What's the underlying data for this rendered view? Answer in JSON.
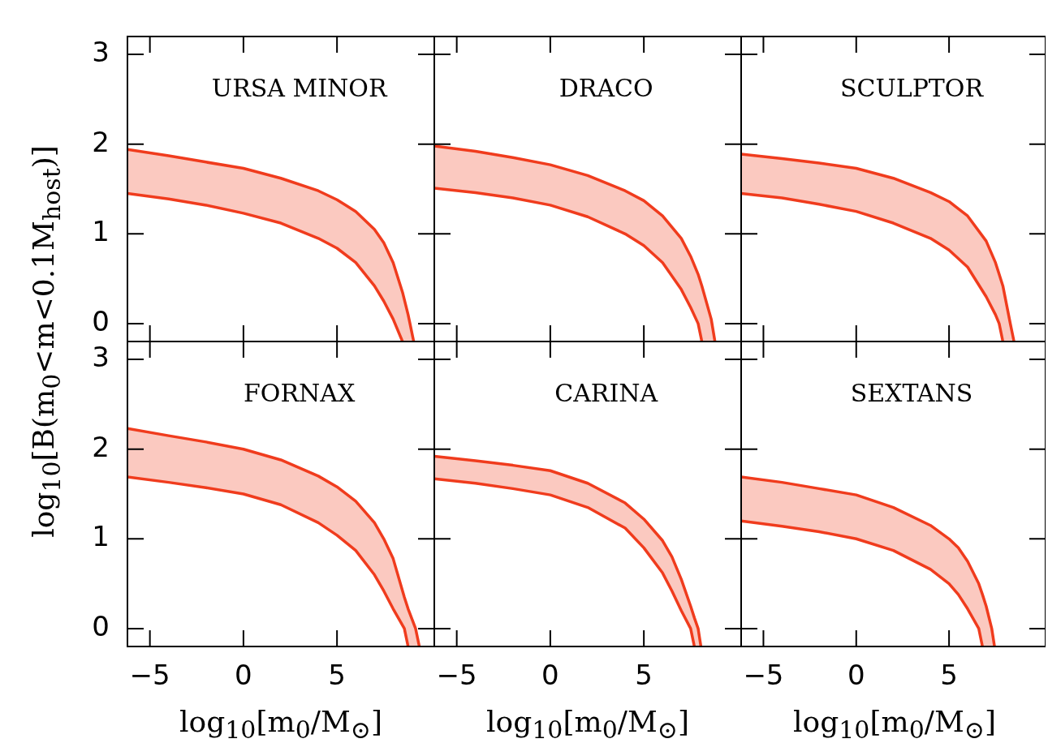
{
  "chart_data": [
    {
      "type": "line",
      "title": "URSA MINOR",
      "ylabel": "log$_{10}$[B(m$_{0}$<m<0.1M$_{host}$)]",
      "xlim": [
        -6.2,
        10.2
      ],
      "ylim": [
        -0.2,
        3.2
      ],
      "xticks": [
        -5,
        0,
        5
      ],
      "yticks": [
        0,
        1,
        2,
        3
      ],
      "tick_labels": "y",
      "x": [
        -6.2,
        -4,
        -2,
        0,
        2,
        4,
        5,
        6,
        7,
        7.5,
        8,
        8.5,
        8.8,
        9.1
      ],
      "series": [
        {
          "color": "#f03c1e",
          "values": [
            1.94,
            1.87,
            1.8,
            1.73,
            1.62,
            1.48,
            1.38,
            1.25,
            1.05,
            0.9,
            0.68,
            0.35,
            0.1,
            -0.2
          ],
          "upper": [
            1.94,
            1.87,
            1.8,
            1.73,
            1.62,
            1.48,
            1.38,
            1.25,
            1.05,
            0.9,
            0.68,
            0.35,
            0.1,
            -0.2
          ],
          "lower": [
            1.45,
            1.39,
            1.32,
            1.23,
            1.12,
            0.95,
            0.84,
            0.68,
            0.42,
            0.25,
            0.05,
            -0.2,
            -0.2,
            -0.2
          ]
        },
        {
          "color": "#f03c1e",
          "values": [
            1.45,
            1.39,
            1.32,
            1.23,
            1.12,
            0.95,
            0.84,
            0.68,
            0.42,
            0.25,
            0.05,
            -0.2,
            null,
            null
          ]
        }
      ]
    },
    {
      "type": "line",
      "title": "DRACO",
      "xlim": [
        -6.2,
        10.2
      ],
      "ylim": [
        -0.2,
        3.2
      ],
      "xticks": [
        -5,
        0,
        5
      ],
      "yticks": [
        0,
        1,
        2,
        3
      ],
      "tick_labels": false,
      "x": [
        -6.2,
        -4,
        -2,
        0,
        2,
        4,
        5,
        6,
        7,
        7.5,
        7.9,
        8.1,
        8.6,
        8.8
      ],
      "series": [
        {
          "color": "#f03c1e",
          "values": [
            1.98,
            1.92,
            1.85,
            1.77,
            1.65,
            1.48,
            1.37,
            1.2,
            0.95,
            0.75,
            0.55,
            0.42,
            0.05,
            -0.2
          ],
          "upper": [
            1.98,
            1.92,
            1.85,
            1.77,
            1.65,
            1.48,
            1.37,
            1.2,
            0.95,
            0.75,
            0.55,
            0.42,
            0.05,
            -0.2
          ],
          "lower": [
            1.51,
            1.46,
            1.4,
            1.32,
            1.19,
            1.0,
            0.87,
            0.68,
            0.38,
            0.18,
            0,
            -0.2,
            -0.2,
            -0.2
          ]
        },
        {
          "color": "#f03c1e",
          "values": [
            1.51,
            1.46,
            1.4,
            1.32,
            1.19,
            1.0,
            0.87,
            0.68,
            0.38,
            0.18,
            0,
            -0.2,
            null,
            null
          ]
        }
      ]
    },
    {
      "type": "line",
      "title": "SCULPTOR",
      "xlim": [
        -6.2,
        10.2
      ],
      "ylim": [
        -0.2,
        3.2
      ],
      "xticks": [
        -5,
        0,
        5
      ],
      "yticks": [
        0,
        1,
        2,
        3
      ],
      "tick_labels": false,
      "x": [
        -6.2,
        -4,
        -2,
        0,
        2,
        4,
        5,
        6,
        7,
        7.5,
        7.7,
        7.9,
        8.3,
        8.5
      ],
      "series": [
        {
          "color": "#f03c1e",
          "values": [
            1.89,
            1.84,
            1.79,
            1.73,
            1.62,
            1.46,
            1.36,
            1.2,
            0.92,
            0.68,
            0.55,
            0.42,
            0,
            -0.2
          ],
          "upper": [
            1.89,
            1.84,
            1.79,
            1.73,
            1.62,
            1.46,
            1.36,
            1.2,
            0.92,
            0.68,
            0.55,
            0.42,
            0,
            -0.2
          ],
          "lower": [
            1.45,
            1.4,
            1.33,
            1.25,
            1.12,
            0.95,
            0.82,
            0.63,
            0.3,
            0.1,
            0,
            -0.2,
            -0.2,
            -0.2
          ]
        },
        {
          "color": "#f03c1e",
          "values": [
            1.45,
            1.4,
            1.33,
            1.25,
            1.12,
            0.95,
            0.82,
            0.63,
            0.3,
            0.1,
            0,
            -0.2,
            null,
            null
          ]
        }
      ]
    },
    {
      "type": "line",
      "title": "FORNAX",
      "xlabel": "log$_{10}$[m$_{0}$/M$_{⊙}$]",
      "xlim": [
        -6.2,
        10.2
      ],
      "ylim": [
        -0.2,
        3.2
      ],
      "xticks": [
        -5,
        0,
        5
      ],
      "yticks": [
        0,
        1,
        2,
        3
      ],
      "x": [
        -6.2,
        -4,
        -2,
        0,
        2,
        4,
        5,
        6,
        7,
        7.5,
        8,
        8.6,
        8.8,
        9.2,
        9.4
      ],
      "series": [
        {
          "color": "#f03c1e",
          "values": [
            2.23,
            2.15,
            2.08,
            2.0,
            1.88,
            1.7,
            1.58,
            1.42,
            1.18,
            1.0,
            0.78,
            0.35,
            0.22,
            0,
            -0.2
          ],
          "upper": [
            2.23,
            2.15,
            2.08,
            2.0,
            1.88,
            1.7,
            1.58,
            1.42,
            1.18,
            1.0,
            0.78,
            0.35,
            0.22,
            0,
            -0.2
          ],
          "lower": [
            1.69,
            1.63,
            1.57,
            1.5,
            1.38,
            1.18,
            1.04,
            0.87,
            0.6,
            0.42,
            0.22,
            0,
            -0.2,
            -0.2,
            -0.2
          ]
        },
        {
          "color": "#f03c1e",
          "values": [
            1.69,
            1.63,
            1.57,
            1.5,
            1.38,
            1.18,
            1.04,
            0.87,
            0.6,
            0.42,
            0.22,
            0,
            -0.2,
            null,
            null
          ]
        }
      ]
    },
    {
      "type": "line",
      "title": "CARINA",
      "xlabel": "log$_{10}$[m$_{0}$/M$_{⊙}$]",
      "xlim": [
        -6.2,
        10.2
      ],
      "ylim": [
        -0.2,
        3.2
      ],
      "xticks": [
        -5,
        0,
        5
      ],
      "yticks": [
        0,
        1,
        2,
        3
      ],
      "tick_labels": "x",
      "x": [
        -6.2,
        -4,
        -2,
        0,
        2,
        4,
        5,
        6,
        6.5,
        7,
        7.5,
        7.7,
        7.9,
        8.05
      ],
      "series": [
        {
          "color": "#f03c1e",
          "values": [
            1.92,
            1.87,
            1.82,
            1.76,
            1.62,
            1.4,
            1.22,
            0.98,
            0.8,
            0.55,
            0.25,
            0.12,
            0,
            -0.2
          ],
          "upper": [
            1.92,
            1.87,
            1.82,
            1.76,
            1.62,
            1.4,
            1.22,
            0.98,
            0.8,
            0.55,
            0.25,
            0.12,
            0,
            -0.2
          ],
          "lower": [
            1.67,
            1.62,
            1.56,
            1.49,
            1.35,
            1.12,
            0.9,
            0.62,
            0.42,
            0.2,
            0,
            -0.2,
            -0.2,
            -0.2
          ]
        },
        {
          "color": "#f03c1e",
          "values": [
            1.67,
            1.62,
            1.56,
            1.49,
            1.35,
            1.12,
            0.9,
            0.62,
            0.42,
            0.2,
            0,
            -0.2,
            null,
            null
          ]
        }
      ]
    },
    {
      "type": "line",
      "title": "SEXTANS",
      "xlabel": "log$_{10}$[m$_{0}$/M$_{⊙}$]",
      "xlim": [
        -6.2,
        10.2
      ],
      "ylim": [
        -0.2,
        3.2
      ],
      "xticks": [
        -5,
        0,
        5
      ],
      "yticks": [
        0,
        1,
        2,
        3
      ],
      "tick_labels": "x",
      "x": [
        -6.2,
        -4,
        -2,
        0,
        2,
        4,
        5,
        5.5,
        6,
        6.6,
        6.8,
        7,
        7.3,
        7.45
      ],
      "series": [
        {
          "color": "#f03c1e",
          "values": [
            1.69,
            1.63,
            1.56,
            1.49,
            1.35,
            1.15,
            1.0,
            0.9,
            0.75,
            0.5,
            0.38,
            0.25,
            0,
            -0.2
          ],
          "upper": [
            1.69,
            1.63,
            1.56,
            1.49,
            1.35,
            1.15,
            1.0,
            0.9,
            0.75,
            0.5,
            0.38,
            0.25,
            0,
            -0.2
          ],
          "lower": [
            1.2,
            1.14,
            1.08,
            1.0,
            0.87,
            0.66,
            0.5,
            0.38,
            0.22,
            0,
            -0.2,
            -0.2,
            -0.2,
            -0.2
          ]
        },
        {
          "color": "#f03c1e",
          "values": [
            1.2,
            1.14,
            1.08,
            1.0,
            0.87,
            0.66,
            0.5,
            0.38,
            0.22,
            0,
            -0.2,
            null,
            null,
            null
          ]
        }
      ]
    }
  ]
}
